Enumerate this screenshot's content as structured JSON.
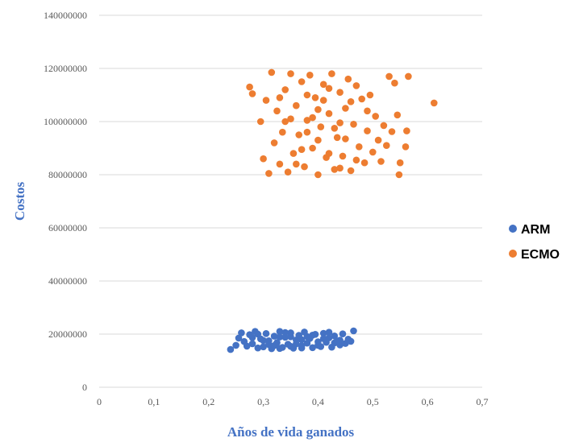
{
  "chart_data": {
    "type": "scatter",
    "title": "",
    "xlabel": "Años de vida ganados",
    "ylabel": "Costos",
    "xlim": [
      0,
      0.7
    ],
    "ylim": [
      0,
      140000000
    ],
    "x_ticks": [
      "0",
      "0,1",
      "0,2",
      "0,3",
      "0,4",
      "0,5",
      "0,6",
      "0,7"
    ],
    "y_ticks": [
      "0",
      "20000000",
      "40000000",
      "60000000",
      "80000000",
      "100000000",
      "120000000",
      "140000000"
    ],
    "grid": "horizontal",
    "legend_position": "right",
    "series": [
      {
        "name": "ARM",
        "color": "#4472c4",
        "points": [
          [
            0.24,
            14200000
          ],
          [
            0.25,
            15800000
          ],
          [
            0.255,
            18500000
          ],
          [
            0.26,
            20500000
          ],
          [
            0.265,
            17200000
          ],
          [
            0.27,
            15500000
          ],
          [
            0.275,
            19800000
          ],
          [
            0.28,
            16400000
          ],
          [
            0.285,
            21000000
          ],
          [
            0.29,
            14800000
          ],
          [
            0.295,
            18200000
          ],
          [
            0.3,
            15200000
          ],
          [
            0.305,
            20200000
          ],
          [
            0.31,
            17500000
          ],
          [
            0.315,
            14500000
          ],
          [
            0.32,
            19200000
          ],
          [
            0.325,
            16800000
          ],
          [
            0.33,
            21000000
          ],
          [
            0.335,
            15000000
          ],
          [
            0.34,
            18800000
          ],
          [
            0.345,
            16200000
          ],
          [
            0.35,
            20500000
          ],
          [
            0.355,
            14700000
          ],
          [
            0.36,
            17800000
          ],
          [
            0.365,
            19500000
          ],
          [
            0.37,
            15600000
          ],
          [
            0.375,
            20800000
          ],
          [
            0.38,
            16600000
          ],
          [
            0.385,
            18400000
          ],
          [
            0.39,
            14900000
          ],
          [
            0.395,
            19900000
          ],
          [
            0.4,
            17100000
          ],
          [
            0.405,
            15300000
          ],
          [
            0.41,
            20300000
          ],
          [
            0.415,
            16900000
          ],
          [
            0.42,
            18600000
          ],
          [
            0.425,
            15100000
          ],
          [
            0.43,
            19300000
          ],
          [
            0.435,
            17400000
          ],
          [
            0.44,
            15900000
          ],
          [
            0.445,
            20100000
          ],
          [
            0.45,
            16500000
          ],
          [
            0.455,
            18100000
          ],
          [
            0.46,
            17300000
          ],
          [
            0.465,
            21200000
          ],
          [
            0.31,
            16100000
          ],
          [
            0.33,
            18900000
          ],
          [
            0.35,
            15400000
          ],
          [
            0.37,
            17900000
          ],
          [
            0.39,
            19600000
          ],
          [
            0.28,
            18700000
          ],
          [
            0.3,
            17600000
          ],
          [
            0.32,
            15700000
          ],
          [
            0.34,
            20600000
          ],
          [
            0.36,
            16300000
          ],
          [
            0.38,
            19100000
          ],
          [
            0.4,
            15800000
          ],
          [
            0.42,
            20700000
          ],
          [
            0.44,
            17700000
          ],
          [
            0.33,
            14600000
          ],
          [
            0.35,
            19000000
          ],
          [
            0.37,
            14800000
          ],
          [
            0.29,
            20000000
          ],
          [
            0.41,
            18300000
          ],
          [
            0.43,
            16700000
          ]
        ]
      },
      {
        "name": "ECMO",
        "color": "#ed7d31",
        "points": [
          [
            0.275,
            113000000
          ],
          [
            0.28,
            110500000
          ],
          [
            0.295,
            100000000
          ],
          [
            0.3,
            86000000
          ],
          [
            0.305,
            108000000
          ],
          [
            0.31,
            80500000
          ],
          [
            0.315,
            118500000
          ],
          [
            0.32,
            92000000
          ],
          [
            0.325,
            104000000
          ],
          [
            0.33,
            84000000
          ],
          [
            0.335,
            96000000
          ],
          [
            0.34,
            112000000
          ],
          [
            0.345,
            81000000
          ],
          [
            0.35,
            118000000
          ],
          [
            0.355,
            88000000
          ],
          [
            0.36,
            106000000
          ],
          [
            0.365,
            95000000
          ],
          [
            0.37,
            115000000
          ],
          [
            0.375,
            83000000
          ],
          [
            0.38,
            100500000
          ],
          [
            0.385,
            117500000
          ],
          [
            0.39,
            90000000
          ],
          [
            0.395,
            109000000
          ],
          [
            0.4,
            80000000
          ],
          [
            0.405,
            98000000
          ],
          [
            0.41,
            114000000
          ],
          [
            0.415,
            86500000
          ],
          [
            0.42,
            103000000
          ],
          [
            0.425,
            118000000
          ],
          [
            0.43,
            82000000
          ],
          [
            0.435,
            94000000
          ],
          [
            0.44,
            111000000
          ],
          [
            0.445,
            87000000
          ],
          [
            0.45,
            105000000
          ],
          [
            0.455,
            116000000
          ],
          [
            0.46,
            81500000
          ],
          [
            0.465,
            99000000
          ],
          [
            0.47,
            113500000
          ],
          [
            0.475,
            90500000
          ],
          [
            0.48,
            108500000
          ],
          [
            0.485,
            84500000
          ],
          [
            0.49,
            96500000
          ],
          [
            0.495,
            110000000
          ],
          [
            0.5,
            88500000
          ],
          [
            0.505,
            102000000
          ],
          [
            0.51,
            93000000
          ],
          [
            0.515,
            85000000
          ],
          [
            0.52,
            98500000
          ],
          [
            0.525,
            91000000
          ],
          [
            0.53,
            117000000
          ],
          [
            0.535,
            96200000
          ],
          [
            0.54,
            114500000
          ],
          [
            0.545,
            102500000
          ],
          [
            0.548,
            80000000
          ],
          [
            0.55,
            84500000
          ],
          [
            0.56,
            90500000
          ],
          [
            0.562,
            96500000
          ],
          [
            0.565,
            117000000
          ],
          [
            0.612,
            107000000
          ],
          [
            0.34,
            100000000
          ],
          [
            0.36,
            84000000
          ],
          [
            0.38,
            110000000
          ],
          [
            0.4,
            93000000
          ],
          [
            0.42,
            88000000
          ],
          [
            0.44,
            99500000
          ],
          [
            0.46,
            107500000
          ],
          [
            0.38,
            96000000
          ],
          [
            0.4,
            104500000
          ],
          [
            0.42,
            112500000
          ],
          [
            0.44,
            82500000
          ],
          [
            0.37,
            89500000
          ],
          [
            0.39,
            101500000
          ],
          [
            0.41,
            108000000
          ],
          [
            0.43,
            97500000
          ],
          [
            0.45,
            93500000
          ],
          [
            0.35,
            101000000
          ],
          [
            0.47,
            85500000
          ],
          [
            0.33,
            109000000
          ],
          [
            0.49,
            104000000
          ]
        ]
      }
    ]
  }
}
